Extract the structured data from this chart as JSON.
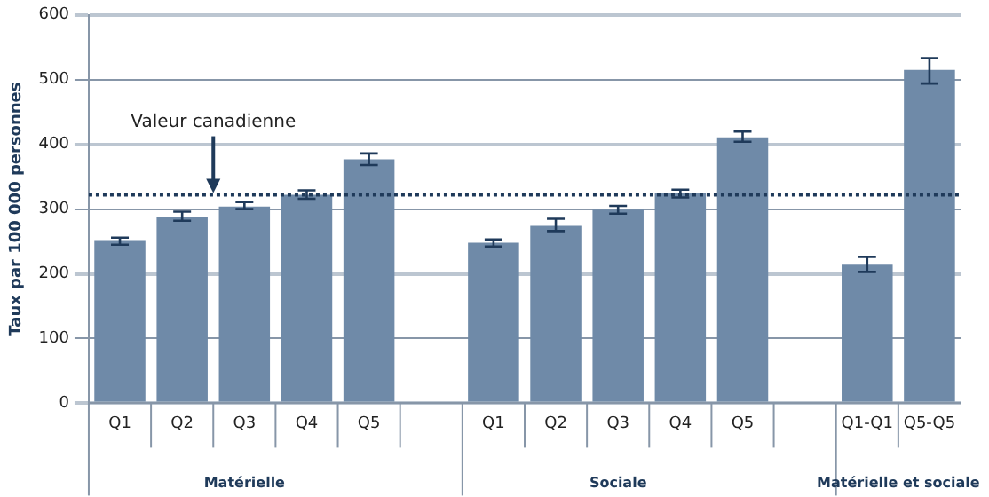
{
  "chart_data": {
    "type": "bar",
    "ylabel": "Taux par 100 000 personnes",
    "categories": [
      "Q1",
      "Q2",
      "Q3",
      "Q4",
      "Q5",
      null,
      "Q1",
      "Q2",
      "Q3",
      "Q4",
      "Q5",
      null,
      "Q1-Q1",
      "Q5-Q5"
    ],
    "values": [
      252,
      288,
      304,
      322,
      377,
      null,
      248,
      274,
      299,
      324,
      411,
      null,
      214,
      515
    ],
    "errors": [
      [
        245,
        256
      ],
      [
        282,
        296
      ],
      [
        300,
        311
      ],
      [
        316,
        329
      ],
      [
        368,
        386
      ],
      null,
      [
        242,
        253
      ],
      [
        266,
        285
      ],
      [
        293,
        305
      ],
      [
        318,
        330
      ],
      [
        404,
        420
      ],
      null,
      [
        203,
        226
      ],
      [
        494,
        533
      ]
    ],
    "color": "#6f8aa8",
    "ylim": [
      0,
      600
    ],
    "yticks": [
      0,
      100,
      200,
      300,
      400,
      500,
      600
    ],
    "grid": "y",
    "ref_lines": [
      {
        "axis": "y",
        "value": 322,
        "label": "Valeur canadienne",
        "color": "#1f3a5a",
        "line_style": "dotted"
      }
    ],
    "annotations": [
      "Matérielle",
      "Sociale",
      "Matérielle et sociale"
    ]
  }
}
